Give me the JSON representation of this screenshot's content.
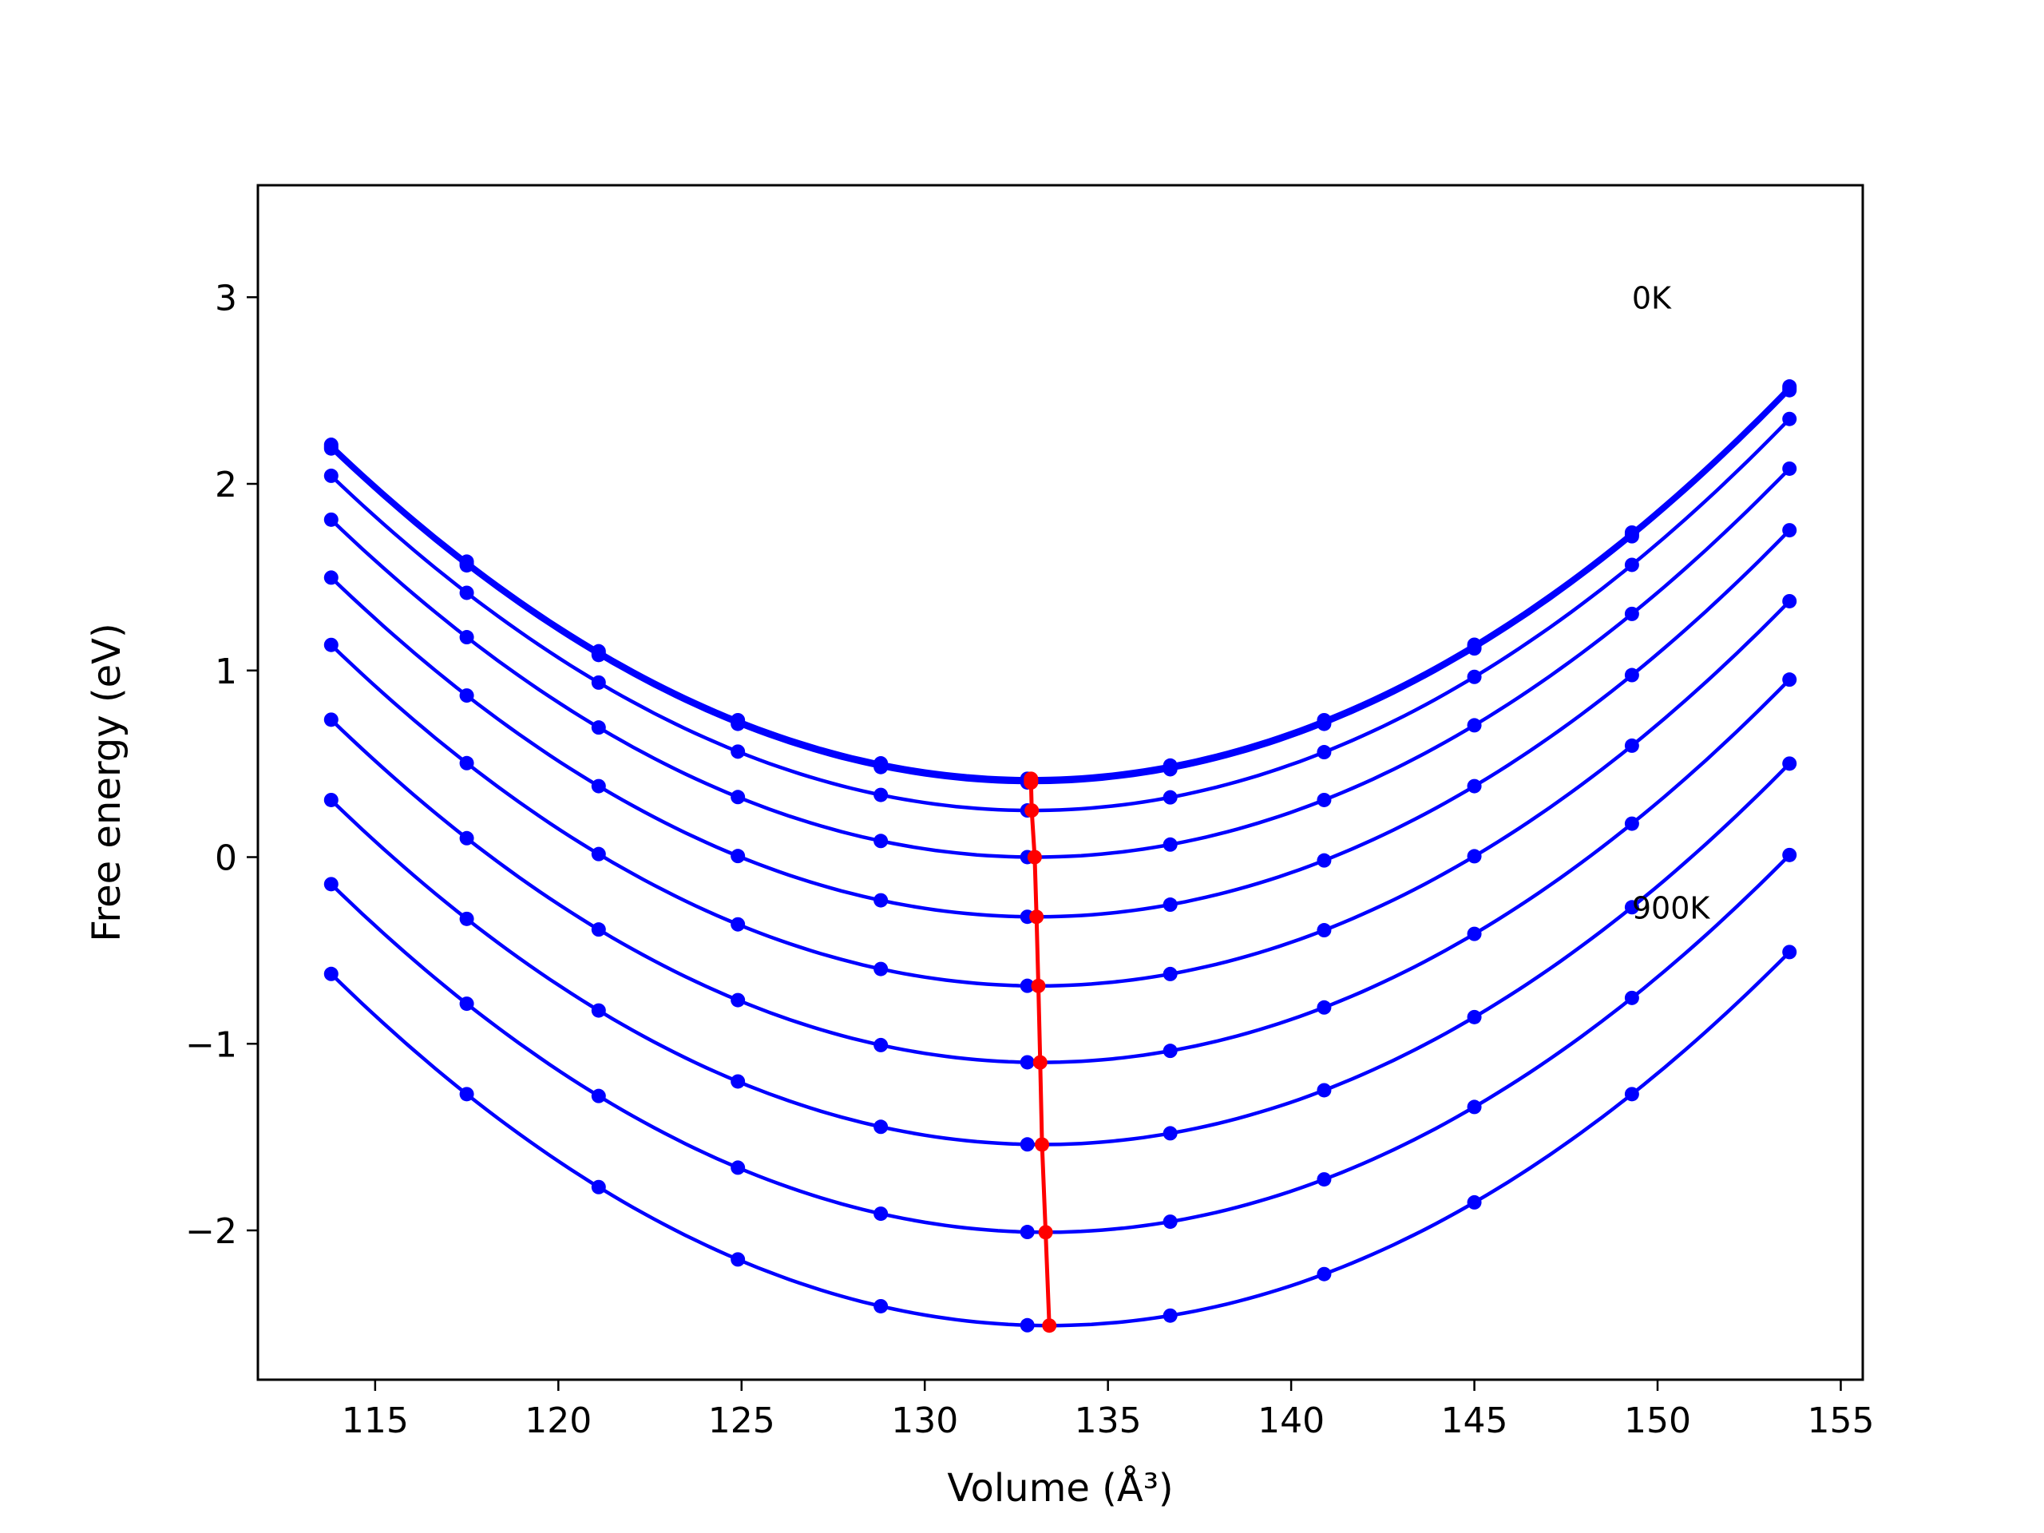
{
  "chart_data": {
    "type": "line",
    "xlabel": "Volume (Å³)",
    "ylabel": "Free energy (eV)",
    "xlim": [
      111.8,
      155.6
    ],
    "ylim": [
      -2.8,
      3.6
    ],
    "xticks": [
      115,
      120,
      125,
      130,
      135,
      140,
      145,
      150,
      155
    ],
    "yticks": [
      -2,
      -1,
      0,
      1,
      2,
      3
    ],
    "ytick_labels": [
      "−2",
      "−1",
      "0",
      "1",
      "2",
      "3"
    ],
    "grid": false,
    "annotations": [
      {
        "text": "0K",
        "x": 149.3,
        "y": 3.0
      },
      {
        "text": "900K",
        "x": 149.3,
        "y": -0.27
      }
    ],
    "volumes": [
      113.8,
      117.5,
      121.1,
      124.9,
      128.8,
      132.8,
      136.7,
      140.9,
      145.0,
      149.3,
      153.6
    ],
    "fit_curves": [
      {
        "a": 0.004905,
        "v0": 132.9,
        "e0": 0.42
      },
      {
        "a": 0.004905,
        "v0": 132.9,
        "e0": 0.41
      },
      {
        "a": 0.004905,
        "v0": 132.9,
        "e0": 0.4
      },
      {
        "a": 0.004905,
        "v0": 132.92,
        "e0": 0.25
      },
      {
        "a": 0.004905,
        "v0": 133.0,
        "e0": 0.0
      },
      {
        "a": 0.004905,
        "v0": 133.05,
        "e0": -0.32
      },
      {
        "a": 0.004905,
        "v0": 133.1,
        "e0": -0.69
      },
      {
        "a": 0.004905,
        "v0": 133.15,
        "e0": -1.1
      },
      {
        "a": 0.004905,
        "v0": 133.2,
        "e0": -1.54
      },
      {
        "a": 0.004905,
        "v0": 133.3,
        "e0": -2.01
      },
      {
        "a": 0.004905,
        "v0": 133.4,
        "e0": -2.51
      }
    ],
    "series": [
      {
        "color": "#0000ff",
        "marker": "circle",
        "style": "line"
      },
      {
        "color": "#ff0000",
        "marker": "circle",
        "style": "line",
        "x": [
          132.9,
          132.9,
          132.9,
          132.92,
          133.0,
          133.05,
          133.1,
          133.15,
          133.2,
          133.3,
          133.4
        ],
        "y": [
          0.42,
          0.41,
          0.4,
          0.25,
          0.0,
          -0.32,
          -0.69,
          -1.1,
          -1.54,
          -2.01,
          -2.51
        ]
      }
    ]
  }
}
